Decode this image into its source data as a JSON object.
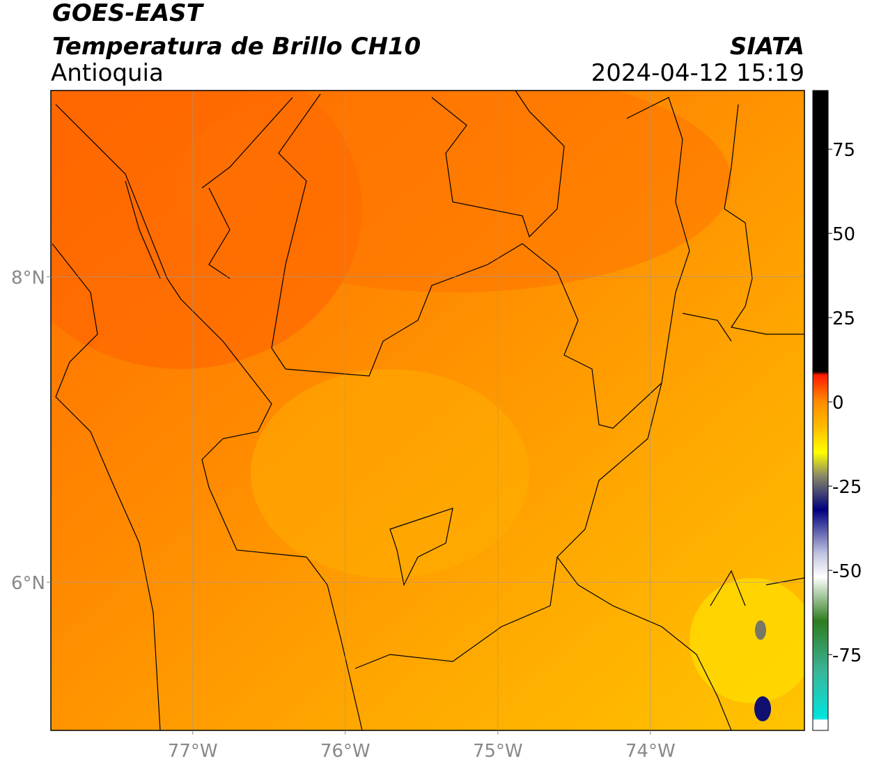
{
  "header": {
    "satellite": "GOES-EAST",
    "product": "Temperatura de Brillo CH10",
    "region": "Antioquia",
    "source": "SIATA",
    "datetime": "2024-04-12 15:19"
  },
  "map": {
    "xlim": [
      -77.93,
      -72.99
    ],
    "ylim": [
      5.03,
      9.22
    ],
    "grid": true,
    "xticks": [
      {
        "value": -77,
        "label": "77°W"
      },
      {
        "value": -76,
        "label": "76°W"
      },
      {
        "value": -75,
        "label": "75°W"
      },
      {
        "value": -74,
        "label": "74°W"
      }
    ],
    "yticks": [
      {
        "value": 8,
        "label": "8°N"
      },
      {
        "value": 6,
        "label": "6°N"
      }
    ]
  },
  "colorbar": {
    "lim": [
      -97.5,
      92.4
    ],
    "ticks": [
      75,
      50,
      25,
      0,
      -25,
      -50,
      -75
    ],
    "colormap": [
      {
        "value": -97.5,
        "color": "#ffffff"
      },
      {
        "value": -94.5,
        "color": "#ffffff"
      },
      {
        "value": -94,
        "color": "#00e5dd"
      },
      {
        "value": -80,
        "color": "#3ab59a"
      },
      {
        "value": -65,
        "color": "#2e7d1e"
      },
      {
        "value": -52,
        "color": "#ffffff"
      },
      {
        "value": -45,
        "color": "#c0c4e0"
      },
      {
        "value": -32,
        "color": "#000080"
      },
      {
        "value": -22,
        "color": "#888866"
      },
      {
        "value": -15,
        "color": "#ffff00"
      },
      {
        "value": -8,
        "color": "#ffc000"
      },
      {
        "value": 0,
        "color": "#ff8c00"
      },
      {
        "value": 8,
        "color": "#ff1a00"
      },
      {
        "value": 9,
        "color": "#000000"
      },
      {
        "value": 92.4,
        "color": "#000000"
      }
    ]
  }
}
